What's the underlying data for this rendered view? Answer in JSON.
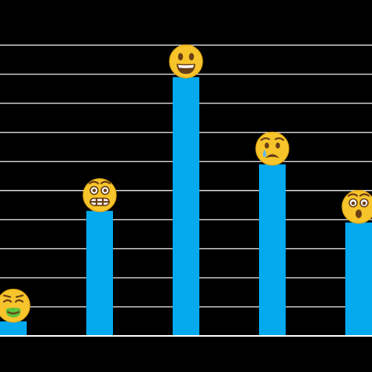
{
  "chart_data": {
    "type": "bar",
    "categories": [
      "nauseated",
      "grimacing",
      "grinning",
      "crying",
      "astonished"
    ],
    "icons": [
      "nauseated-face-icon",
      "grimacing-face-icon",
      "grinning-face-icon",
      "crying-face-icon",
      "astonished-face-icon"
    ],
    "values": [
      0.5,
      4.3,
      8.9,
      5.9,
      3.9
    ],
    "ylim": [
      0,
      10
    ],
    "grid": true,
    "legend": "none",
    "title": "",
    "xlabel": "",
    "ylabel": "",
    "colors": {
      "background": "#000000",
      "bar": "#04a9ee",
      "grid": "#d9d9d9",
      "face": "#f7c52b"
    }
  }
}
